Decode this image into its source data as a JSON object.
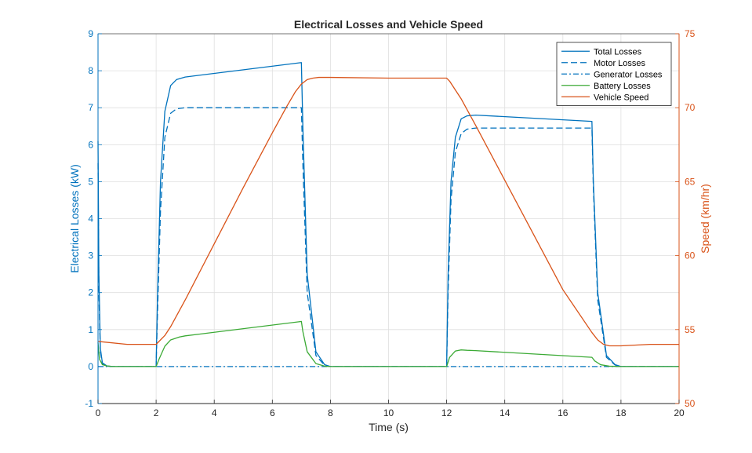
{
  "chart_data": {
    "type": "line",
    "title": "Electrical Losses and Vehicle Speed",
    "xlabel": "Time (s)",
    "ylabel_left": "Electrical Losses (kW)",
    "ylabel_right": "Speed (km/hr)",
    "xlim": [
      0,
      20
    ],
    "ylim_left": [
      -1,
      9
    ],
    "ylim_right": [
      50,
      75
    ],
    "xticks": [
      0,
      2,
      4,
      6,
      8,
      10,
      12,
      14,
      16,
      18,
      20
    ],
    "yticks_left": [
      -1,
      0,
      1,
      2,
      3,
      4,
      5,
      6,
      7,
      8,
      9
    ],
    "yticks_right": [
      50,
      55,
      60,
      65,
      70,
      75
    ],
    "grid": true,
    "legend_position": "top-right",
    "colors": {
      "blue": "#0072BD",
      "orange": "#D95319",
      "green": "#3BAA35"
    },
    "series": [
      {
        "name": "Total Losses",
        "axis": "left",
        "style": "solid",
        "color": "#0072BD",
        "x": [
          0,
          0.03,
          0.08,
          0.15,
          0.3,
          0.5,
          2.0,
          2.05,
          2.15,
          2.3,
          2.5,
          2.7,
          3.0,
          7.0,
          7.05,
          7.2,
          7.5,
          7.8,
          8.0,
          12.0,
          12.05,
          12.15,
          12.3,
          12.5,
          12.7,
          13.0,
          17.0,
          17.05,
          17.2,
          17.5,
          17.8,
          18.0,
          20.0
        ],
        "y": [
          6.1,
          2.5,
          0.5,
          0.1,
          0.02,
          0.0,
          0.0,
          2.0,
          5.0,
          6.9,
          7.6,
          7.76,
          7.83,
          8.22,
          6.5,
          2.5,
          0.4,
          0.05,
          0.0,
          0.0,
          2.5,
          5.0,
          6.2,
          6.7,
          6.78,
          6.8,
          6.63,
          5.0,
          2.0,
          0.3,
          0.05,
          0.0,
          0.0
        ]
      },
      {
        "name": "Motor Losses",
        "axis": "left",
        "style": "dashed",
        "color": "#0072BD",
        "x": [
          0,
          0.03,
          0.08,
          0.15,
          0.3,
          0.5,
          2.0,
          2.05,
          2.15,
          2.3,
          2.5,
          2.7,
          3.0,
          7.0,
          7.05,
          7.2,
          7.5,
          7.8,
          8.0,
          12.0,
          12.05,
          12.15,
          12.3,
          12.5,
          12.7,
          13.0,
          17.0,
          17.05,
          17.2,
          17.5,
          17.8,
          18.0,
          20.0
        ],
        "y": [
          5.5,
          2.0,
          0.4,
          0.08,
          0.01,
          0.0,
          0.0,
          1.5,
          4.2,
          6.2,
          6.85,
          6.97,
          7.0,
          7.0,
          5.5,
          2.0,
          0.3,
          0.03,
          0.0,
          0.0,
          2.0,
          4.5,
          5.8,
          6.3,
          6.42,
          6.45,
          6.45,
          4.8,
          1.8,
          0.25,
          0.04,
          0.0,
          0.0
        ]
      },
      {
        "name": "Generator Losses",
        "axis": "left",
        "style": "dashdot",
        "color": "#0072BD",
        "x": [
          0,
          20
        ],
        "y": [
          0.0,
          0.0
        ]
      },
      {
        "name": "Battery Losses",
        "axis": "left",
        "style": "solid",
        "color": "#3BAA35",
        "x": [
          0,
          0.05,
          0.15,
          0.3,
          0.5,
          2.0,
          2.1,
          2.3,
          2.5,
          2.8,
          3.0,
          7.0,
          7.05,
          7.2,
          7.5,
          7.8,
          8.0,
          12.0,
          12.1,
          12.3,
          12.5,
          12.7,
          13.0,
          17.0,
          17.1,
          17.3,
          17.6,
          18.0,
          20.0
        ],
        "y": [
          0.65,
          0.2,
          0.05,
          0.02,
          0.0,
          0.0,
          0.2,
          0.55,
          0.72,
          0.8,
          0.83,
          1.22,
          0.95,
          0.4,
          0.08,
          0.01,
          0.0,
          0.0,
          0.25,
          0.42,
          0.45,
          0.44,
          0.43,
          0.25,
          0.15,
          0.05,
          0.01,
          0.0,
          0.0
        ]
      },
      {
        "name": "Vehicle Speed",
        "axis": "right",
        "style": "solid",
        "color": "#D95319",
        "x": [
          0,
          1.0,
          2.0,
          2.1,
          2.3,
          2.5,
          3.0,
          4.0,
          5.0,
          6.0,
          6.5,
          6.8,
          7.0,
          7.2,
          7.4,
          7.6,
          8.0,
          10.0,
          12.0,
          12.1,
          12.3,
          12.5,
          13.0,
          14.0,
          15.0,
          16.0,
          17.0,
          17.2,
          17.4,
          17.6,
          18.0,
          19.0,
          20.0
        ],
        "y": [
          54.2,
          54.0,
          54.0,
          54.2,
          54.6,
          55.2,
          57.0,
          60.8,
          64.6,
          68.3,
          70.1,
          71.1,
          71.6,
          71.9,
          72.0,
          72.05,
          72.05,
          72.0,
          72.0,
          71.8,
          71.2,
          70.6,
          68.8,
          65.1,
          61.4,
          57.7,
          54.8,
          54.3,
          54.0,
          53.9,
          53.9,
          54.0,
          54.0
        ]
      }
    ]
  }
}
